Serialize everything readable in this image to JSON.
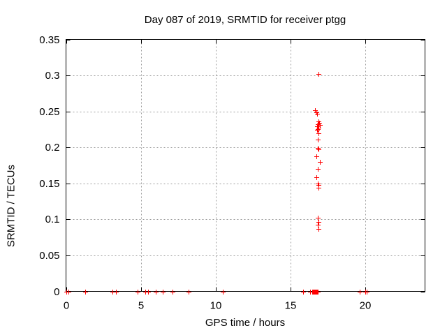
{
  "window": {
    "background_color": "#ffffff"
  },
  "chart_data": {
    "type": "scatter",
    "title": "Day 087 of 2019, SRMTID for receiver ptgg",
    "xlabel": "GPS time / hours",
    "ylabel": "SRMTID / TECUs",
    "xlim": [
      0,
      24
    ],
    "ylim": [
      0,
      0.35
    ],
    "xticks": [
      0,
      5,
      10,
      15,
      20
    ],
    "xtick_labels": [
      "0",
      "5",
      "10",
      "15",
      "20"
    ],
    "yticks": [
      0,
      0.05,
      0.1,
      0.15,
      0.2,
      0.25,
      0.3,
      0.35
    ],
    "ytick_labels": [
      "0",
      "0.05",
      "0.1",
      "0.15",
      "0.2",
      "0.25",
      "0.3",
      "0.35"
    ],
    "grid": true,
    "legend_position": "none",
    "marker": "plus",
    "marker_color": "#ff0000",
    "grid_color": "#9b9b9b",
    "axis_color": "#000000",
    "series": [
      {
        "name": "SRMTID",
        "points": [
          [
            0.0,
            0
          ],
          [
            0.15,
            0
          ],
          [
            1.28,
            0
          ],
          [
            3.1,
            0
          ],
          [
            3.35,
            0
          ],
          [
            4.77,
            0
          ],
          [
            5.3,
            0
          ],
          [
            5.5,
            0
          ],
          [
            6.0,
            0
          ],
          [
            6.48,
            0
          ],
          [
            7.13,
            0
          ],
          [
            8.2,
            0
          ],
          [
            10.5,
            0
          ],
          [
            15.85,
            0
          ],
          [
            16.3,
            0
          ],
          [
            16.48,
            0
          ],
          [
            16.52,
            0
          ],
          [
            16.56,
            0
          ],
          [
            16.6,
            0
          ],
          [
            16.64,
            0
          ],
          [
            16.68,
            0
          ],
          [
            16.72,
            0
          ],
          [
            16.76,
            0
          ],
          [
            16.8,
            0
          ],
          [
            16.84,
            0
          ],
          [
            19.65,
            0
          ],
          [
            20.0,
            0
          ],
          [
            20.1,
            0
          ],
          [
            16.87,
            0.087
          ],
          [
            16.85,
            0.093
          ],
          [
            16.87,
            0.096
          ],
          [
            16.85,
            0.102
          ],
          [
            16.9,
            0.144
          ],
          [
            16.86,
            0.148
          ],
          [
            16.84,
            0.15
          ],
          [
            16.76,
            0.159
          ],
          [
            16.84,
            0.17
          ],
          [
            16.97,
            0.18
          ],
          [
            16.72,
            0.188
          ],
          [
            16.88,
            0.197
          ],
          [
            16.84,
            0.199
          ],
          [
            16.82,
            0.211
          ],
          [
            16.88,
            0.22
          ],
          [
            16.79,
            0.224
          ],
          [
            16.85,
            0.225
          ],
          [
            16.9,
            0.227
          ],
          [
            16.8,
            0.229
          ],
          [
            16.95,
            0.231
          ],
          [
            16.84,
            0.232
          ],
          [
            16.93,
            0.234
          ],
          [
            16.88,
            0.236
          ],
          [
            16.8,
            0.247
          ],
          [
            16.72,
            0.249
          ],
          [
            16.63,
            0.252
          ],
          [
            16.88,
            0.302
          ]
        ]
      }
    ]
  }
}
